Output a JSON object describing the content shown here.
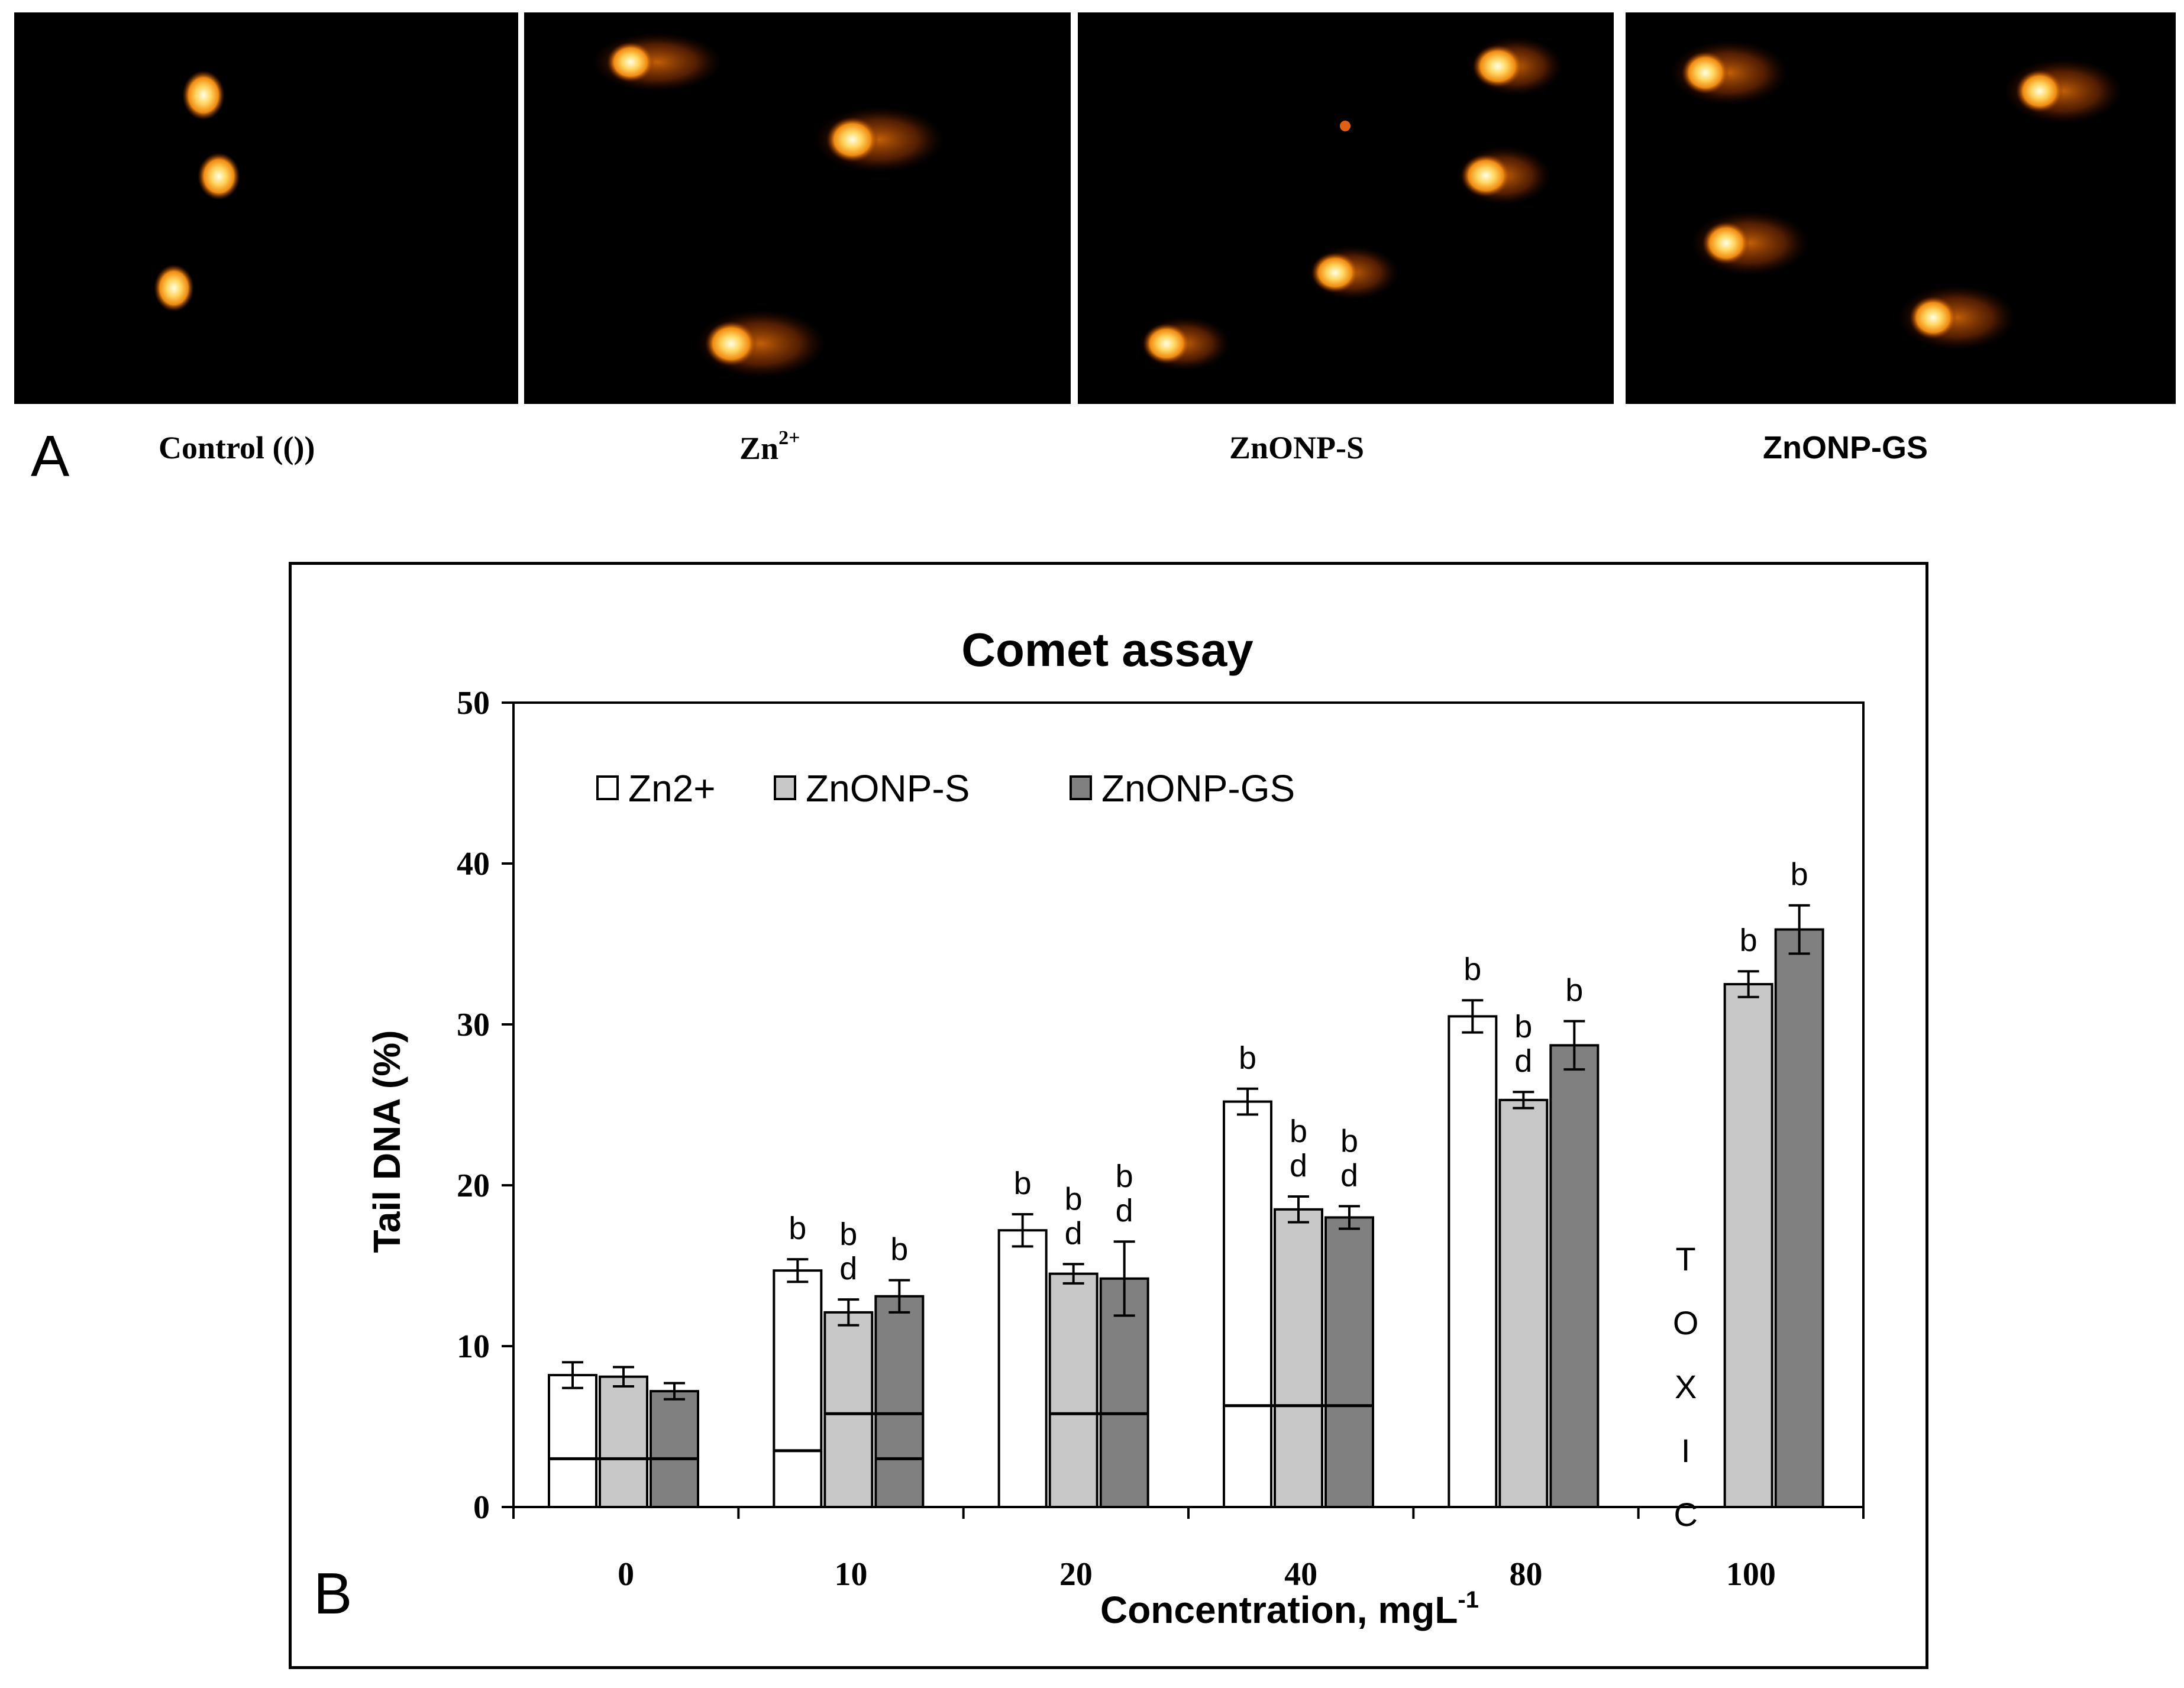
{
  "panel_a": {
    "letter": "A",
    "images": [
      {
        "label": "Control (())"
      },
      {
        "label_main": "Zn",
        "label_sup": "2+"
      },
      {
        "label": "ZnONP-S"
      },
      {
        "label": "ZnONP-GS"
      }
    ]
  },
  "panel_b": {
    "letter": "B"
  },
  "chart_data": {
    "type": "bar",
    "title": "Comet assay",
    "xlabel_main": "Concentration, mgL",
    "xlabel_sup": "-1",
    "ylabel": "Tail DNA (%)",
    "ylim": [
      0,
      50
    ],
    "yticks": [
      0,
      10,
      20,
      30,
      40,
      50
    ],
    "categories": [
      "0",
      "10",
      "20",
      "40",
      "80",
      "100"
    ],
    "series": [
      {
        "name": "Zn2+",
        "color": "#ffffff",
        "values": [
          8.2,
          14.7,
          17.2,
          25.2,
          30.5,
          null
        ],
        "errors": [
          0.8,
          0.7,
          1.0,
          0.8,
          1.0,
          null
        ],
        "labels": [
          [],
          [
            "b"
          ],
          [
            "b"
          ],
          [
            "b"
          ],
          [
            "b"
          ],
          []
        ]
      },
      {
        "name": "ZnONP-S",
        "color": "#c8c8c8",
        "values": [
          8.1,
          12.1,
          14.5,
          18.5,
          25.3,
          32.5
        ],
        "errors": [
          0.6,
          0.8,
          0.6,
          0.8,
          0.5,
          0.8
        ],
        "labels": [
          [],
          [
            "b",
            "d"
          ],
          [
            "b",
            "d"
          ],
          [
            "b",
            "d"
          ],
          [
            "b",
            "d"
          ],
          [
            "b"
          ]
        ]
      },
      {
        "name": "ZnONP-GS",
        "color": "#808080",
        "values": [
          7.2,
          13.1,
          14.2,
          18.0,
          28.7,
          35.9
        ],
        "errors": [
          0.5,
          1.0,
          2.3,
          0.7,
          1.5,
          1.5
        ],
        "labels": [
          [],
          [
            "b"
          ],
          [
            "b",
            "d"
          ],
          [
            "b",
            "d"
          ],
          [
            "b"
          ],
          [
            "b"
          ]
        ]
      }
    ],
    "control_lines": [
      {
        "from_category": "0",
        "from_series": "Zn2+",
        "to_category": "0",
        "to_series": "ZnONP-GS",
        "value": 3.0
      },
      {
        "from_category": "10",
        "from_series": "Zn2+",
        "to_category": "10",
        "to_series": "Zn2+",
        "value": 3.5
      },
      {
        "from_category": "10",
        "from_series": "ZnONP-S",
        "to_category": "10",
        "to_series": "ZnONP-GS",
        "value": 5.8
      },
      {
        "from_category": "10",
        "from_series": "ZnONP-GS",
        "to_category": "10",
        "to_series": "ZnONP-GS",
        "value": 3.0
      },
      {
        "from_category": "20",
        "from_series": "ZnONP-S",
        "to_category": "20",
        "to_series": "ZnONP-GS",
        "value": 5.8
      },
      {
        "from_category": "40",
        "from_series": "Zn2+",
        "to_category": "40",
        "to_series": "ZnONP-GS",
        "value": 6.3
      }
    ],
    "annotations": [
      {
        "category": "100",
        "series": "Zn2+",
        "letters": [
          "T",
          "O",
          "X",
          "I",
          "C"
        ]
      }
    ],
    "legend_position": "top-left",
    "grid": false
  }
}
